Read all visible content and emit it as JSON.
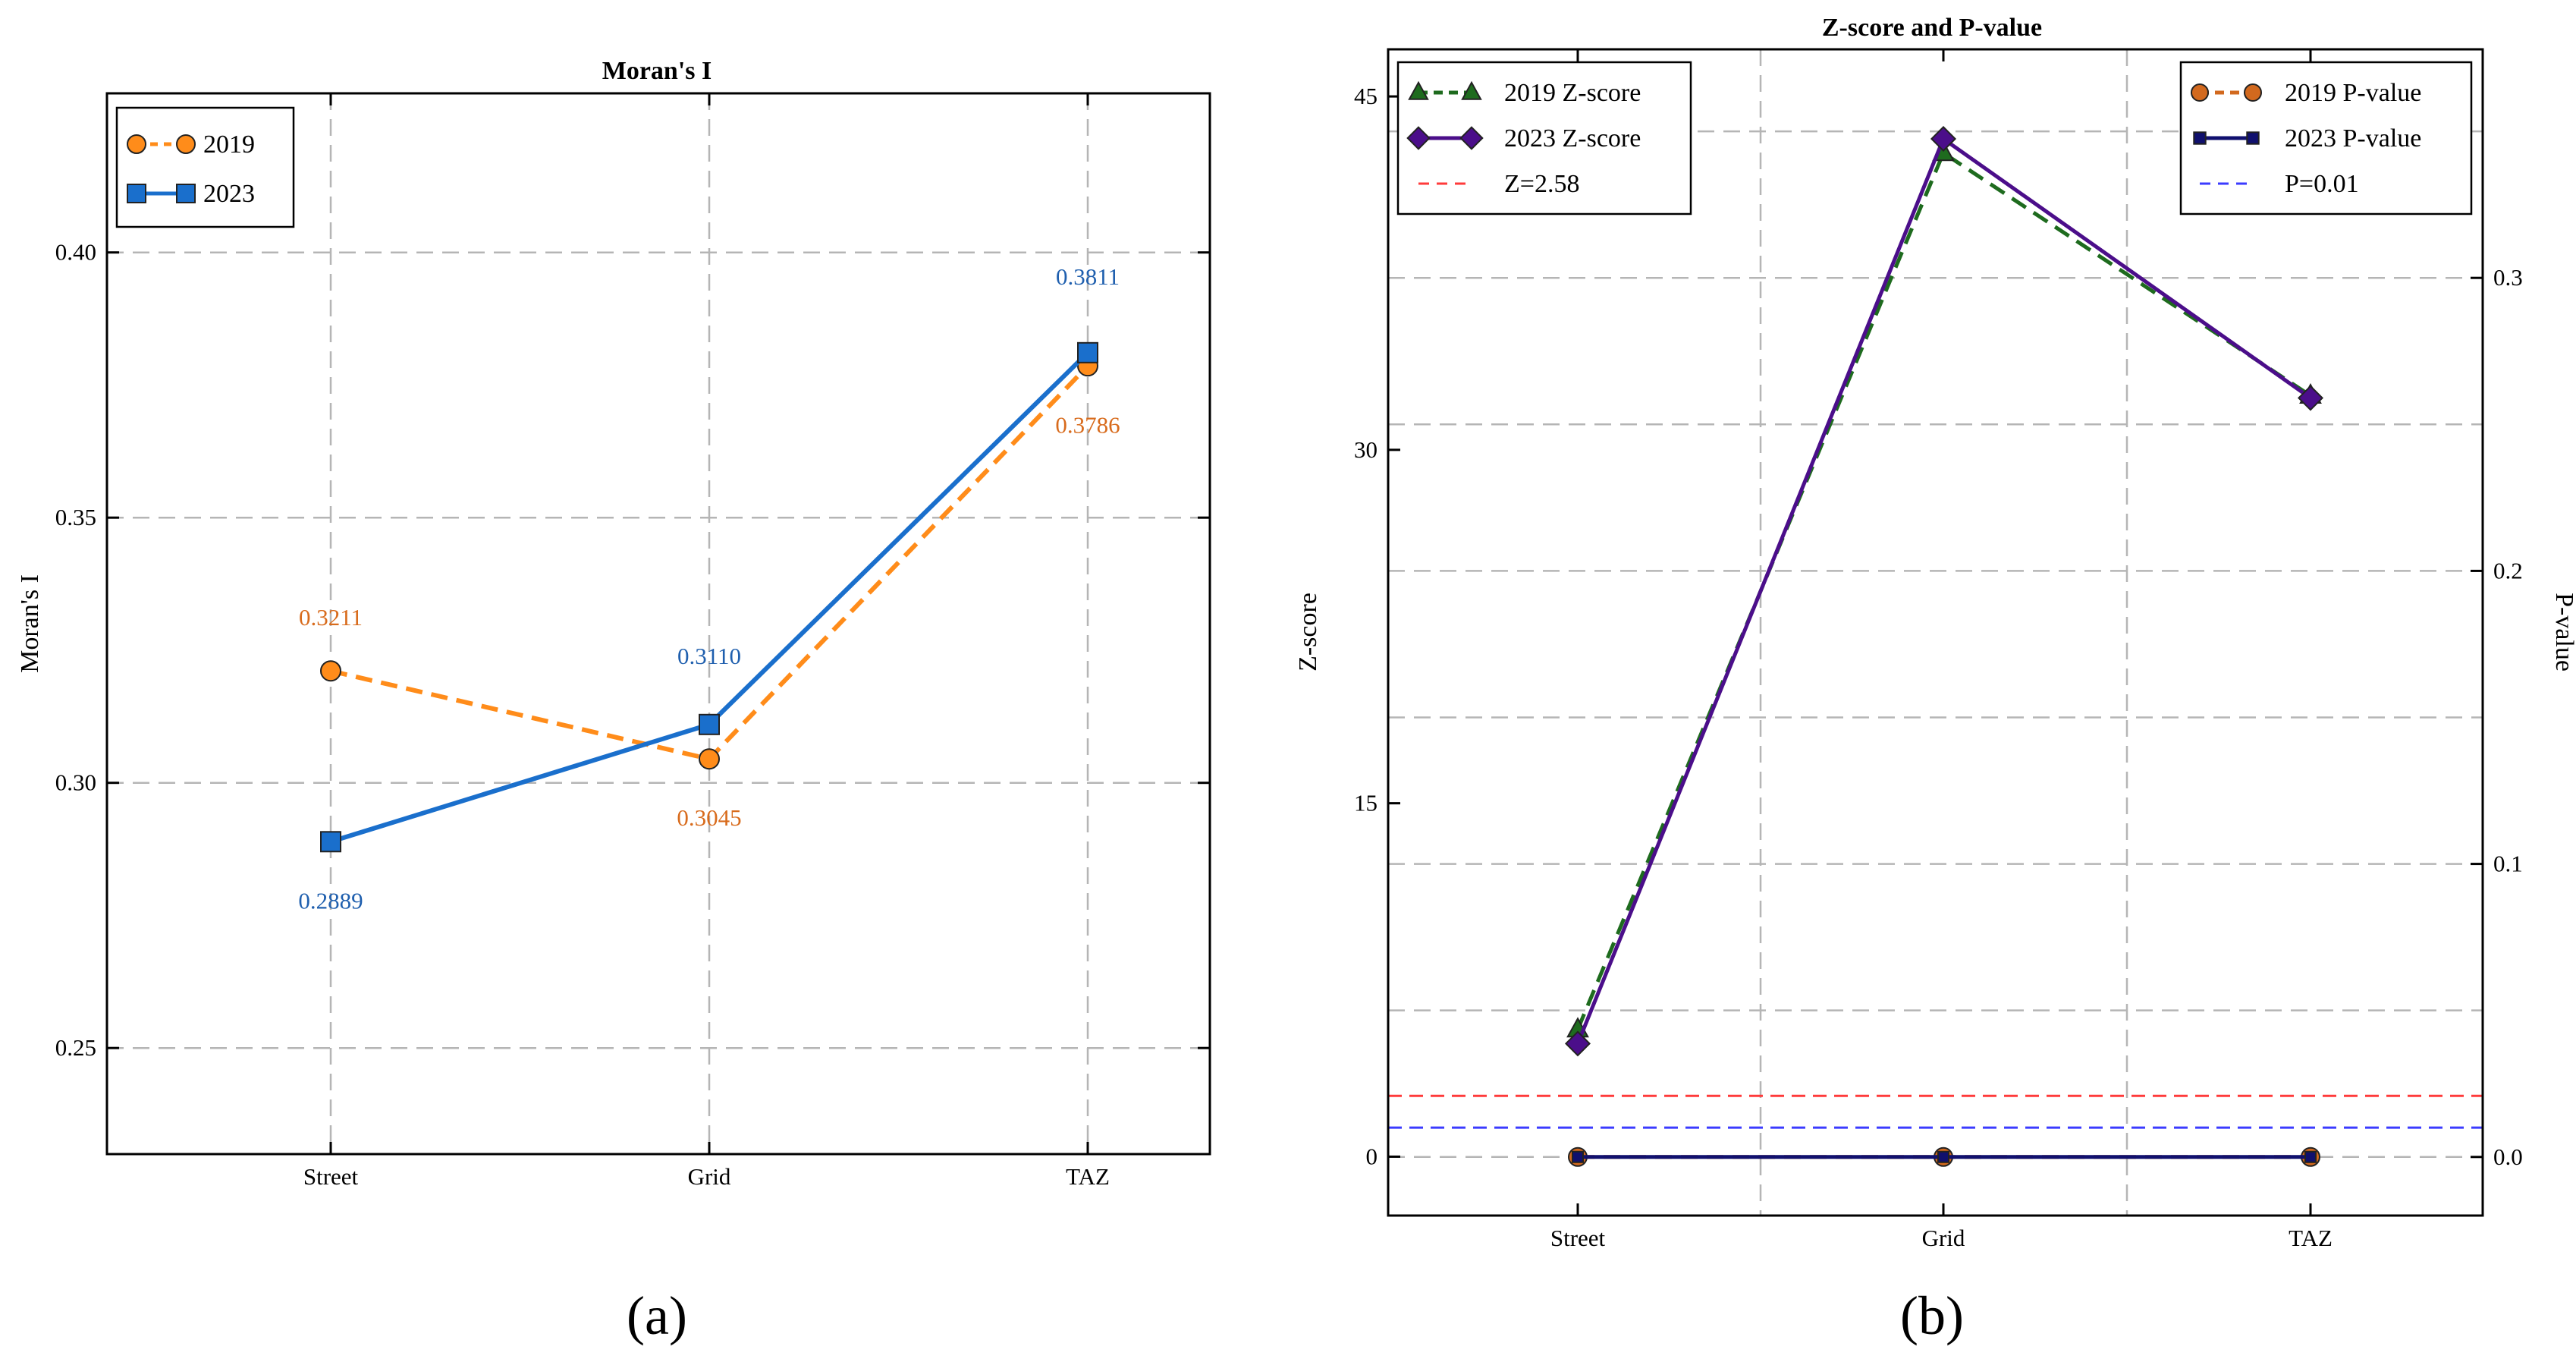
{
  "chart_data": [
    {
      "type": "line",
      "panel_label": "(a)",
      "title": "Moran's I",
      "xlabel": "",
      "ylabel": "Moran's I",
      "categories": [
        "Street",
        "Grid",
        "TAZ"
      ],
      "ylim": [
        0.23,
        0.43
      ],
      "yticks": [
        "0.25",
        "0.30",
        "0.35",
        "0.40"
      ],
      "grid": true,
      "legend_position": "top-left",
      "series": [
        {
          "name": "2019",
          "values": [
            0.3211,
            0.3045,
            0.3786
          ],
          "labels": [
            "0.3211",
            "0.3045",
            "0.3786"
          ],
          "color": "#ff8c1a",
          "label_color": "#d86b1c",
          "marker": "circle",
          "line": "dashed"
        },
        {
          "name": "2023",
          "values": [
            0.2889,
            0.311,
            0.3811
          ],
          "labels": [
            "0.2889",
            "0.3110",
            "0.3811"
          ],
          "color": "#1a6fcc",
          "label_color": "#1f5fae",
          "marker": "square",
          "line": "solid"
        }
      ]
    },
    {
      "type": "line",
      "panel_label": "(b)",
      "title": "Z-score and P-value",
      "xlabel": "",
      "ylabel": "Z-score",
      "ylabel_right": "P-value",
      "categories": [
        "Street",
        "Grid",
        "TAZ"
      ],
      "ylim": [
        -2.5,
        47
      ],
      "yticks": [
        "0",
        "15",
        "30",
        "45"
      ],
      "ylim_right": [
        -0.02,
        0.378
      ],
      "yticks_right": [
        "0.0",
        "0.1",
        "0.2",
        "0.3"
      ],
      "grid": true,
      "legend_position": "top-left",
      "legend_right_position": "top-right",
      "series": [
        {
          "name": "2019 Z-score",
          "values": [
            5.4,
            42.6,
            32.3
          ],
          "color": "#1e6b1e",
          "marker": "triangle",
          "line": "dashed",
          "axis": "left"
        },
        {
          "name": "2023 Z-score",
          "values": [
            4.8,
            43.2,
            32.2
          ],
          "color": "#4b0e8a",
          "marker": "diamond",
          "line": "solid",
          "axis": "left"
        },
        {
          "name": "Z=2.58",
          "value": 2.58,
          "color": "#ff3b3b",
          "line": "dashed",
          "axis": "left",
          "reference": true
        },
        {
          "name": "2019 P-value",
          "values": [
            0.0,
            0.0,
            0.0
          ],
          "color": "#d2691e",
          "marker": "circle",
          "line": "dashed",
          "axis": "right"
        },
        {
          "name": "2023 P-value",
          "values": [
            0.0,
            0.0,
            0.0
          ],
          "color": "#10106e",
          "marker": "small-square",
          "line": "solid",
          "axis": "right"
        },
        {
          "name": "P=0.01",
          "value": 0.01,
          "color": "#3b3bff",
          "line": "dashed",
          "axis": "right",
          "reference": true
        }
      ]
    }
  ]
}
